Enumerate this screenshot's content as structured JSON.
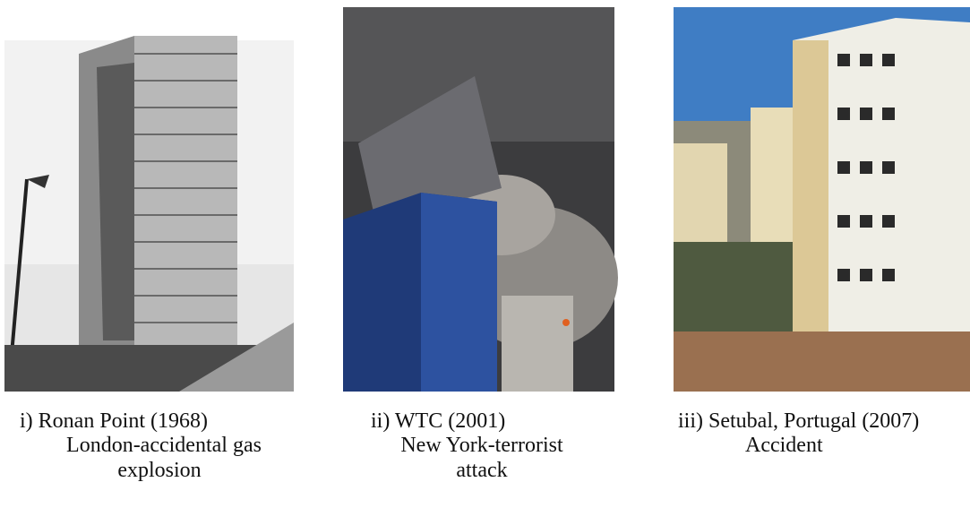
{
  "figures": [
    {
      "caption": [
        "i)  Ronan Point (1968)",
        "London-accidental gas",
        "explosion"
      ]
    },
    {
      "caption": [
        "ii)  WTC (2001)",
        "New York-terrorist",
        "attack"
      ]
    },
    {
      "caption": [
        "iii) Setubal, Portugal (2007)",
        "Accident"
      ]
    }
  ]
}
